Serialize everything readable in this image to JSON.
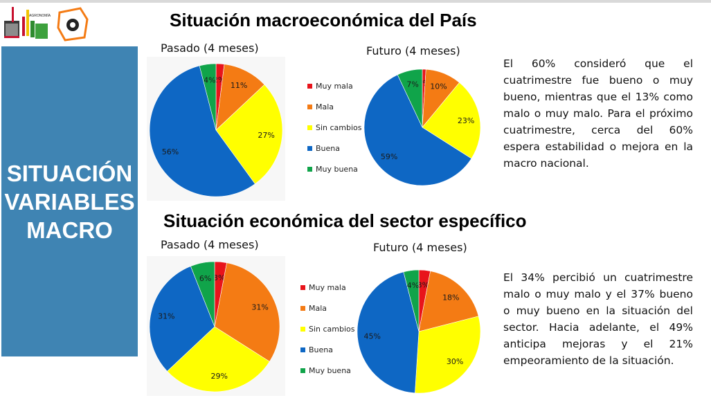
{
  "sidebar": {
    "title_lines": [
      "SITUACIÓN",
      "VARIABLES",
      "MACRO"
    ]
  },
  "sections": [
    {
      "title": "Situación macroeconómica del País",
      "description": "El 60% consideró que el cuatrimestre fue bueno o muy bueno, mientras que el 13% como malo o muy malo. Para el próximo cuatrimestre, cerca del 60% espera estabilidad o mejora en la macro nacional."
    },
    {
      "title": "Situación económica del sector específico",
      "description": "El 34% percibió un cuatrimestre malo o muy malo y el 37% bueno o muy bueno en la situación del sector. Hacia adelante, el 49% anticipa mejoras y el 21% empeoramiento de la situación."
    }
  ],
  "legend": {
    "categories": [
      "Muy mala",
      "Mala",
      "Sin cambios",
      "Buena",
      "Muy buena"
    ],
    "colors": [
      "#e8141b",
      "#f47b14",
      "#ffff00",
      "#0e67c4",
      "#10a44a"
    ]
  },
  "chart_data": [
    {
      "type": "pie",
      "title": "Pasado (4 meses)",
      "categories": [
        "Muy mala",
        "Mala",
        "Sin cambios",
        "Buena",
        "Muy buena"
      ],
      "values": [
        2,
        11,
        27,
        56,
        4
      ],
      "labels": [
        "2%",
        "11%",
        "27%",
        "56%",
        "4%"
      ]
    },
    {
      "type": "pie",
      "title": "Futuro (4 meses)",
      "categories": [
        "Muy mala",
        "Mala",
        "Sin cambios",
        "Buena",
        "Muy buena"
      ],
      "values": [
        1,
        10,
        23,
        59,
        7
      ],
      "labels": [
        "1%",
        "10%",
        "23%",
        "59%",
        "7%"
      ]
    },
    {
      "type": "pie",
      "title": "Pasado (4 meses)",
      "categories": [
        "Muy mala",
        "Mala",
        "Sin cambios",
        "Buena",
        "Muy buena"
      ],
      "values": [
        3,
        31,
        29,
        31,
        6
      ],
      "labels": [
        "3%",
        "31%",
        "29%",
        "31%",
        "6%"
      ]
    },
    {
      "type": "pie",
      "title": "Futuro (4 meses)",
      "categories": [
        "Muy mala",
        "Mala",
        "Sin cambios",
        "Buena",
        "Muy buena"
      ],
      "values": [
        3,
        18,
        30,
        45,
        4
      ],
      "labels": [
        "3%",
        "18%",
        "30%",
        "45%",
        "4%"
      ]
    }
  ]
}
